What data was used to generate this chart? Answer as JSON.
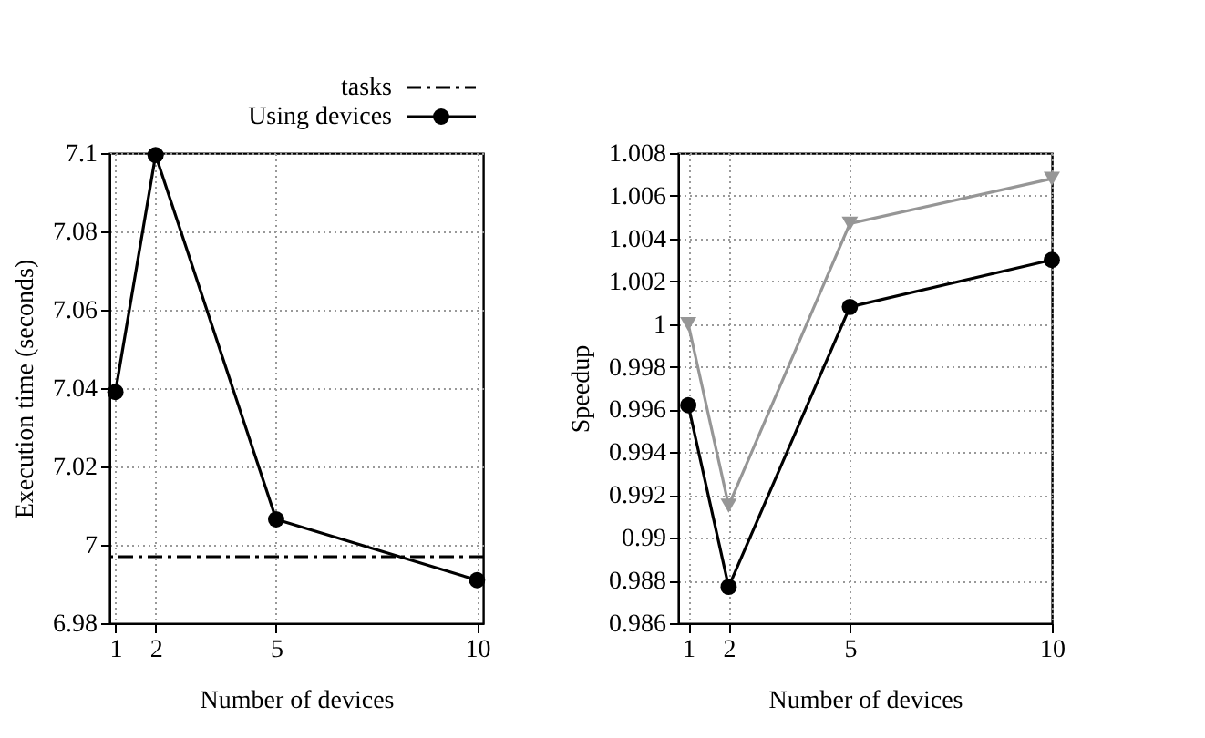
{
  "chart_data": [
    {
      "type": "line",
      "xlabel": "Number of devices",
      "ylabel": "Execution time (seconds)",
      "x": [
        1,
        2,
        5,
        10
      ],
      "xlim": [
        0.85,
        10.15
      ],
      "xticks": [
        1,
        2,
        5,
        10
      ],
      "ylim": [
        6.98,
        7.1
      ],
      "yticks": [
        6.98,
        7,
        7.02,
        7.04,
        7.06,
        7.08,
        7.1
      ],
      "grid": true,
      "legend": "top right",
      "marker": "circle",
      "line_style": "solid",
      "series": [
        {
          "name": "Using devices",
          "color": "#000000",
          "values": [
            7.039,
            7.0995,
            7.0065,
            6.991
          ]
        }
      ],
      "ref_lines": [
        {
          "axis": "y",
          "value": 6.997,
          "label": "tasks",
          "color": "#000000",
          "line_style": "dashdot"
        }
      ]
    },
    {
      "type": "line",
      "xlabel": "Number of devices",
      "ylabel": "Speedup",
      "x": [
        1,
        2,
        5,
        10
      ],
      "xlim": [
        0.75,
        10
      ],
      "xticks": [
        1,
        2,
        5,
        10
      ],
      "ylim": [
        0.986,
        1.008
      ],
      "yticks": [
        0.986,
        0.988,
        0.99,
        0.992,
        0.994,
        0.996,
        0.998,
        1,
        1.002,
        1.004,
        1.006,
        1.008
      ],
      "grid": true,
      "line_style": "solid",
      "series": [
        {
          "color": "#000000",
          "marker": "circle",
          "values": [
            0.9962,
            0.9877,
            1.0008,
            1.003
          ]
        },
        {
          "color": "#969696",
          "marker": "triangle",
          "values": [
            1.0,
            0.9915,
            1.0047,
            1.0068
          ]
        }
      ]
    }
  ]
}
